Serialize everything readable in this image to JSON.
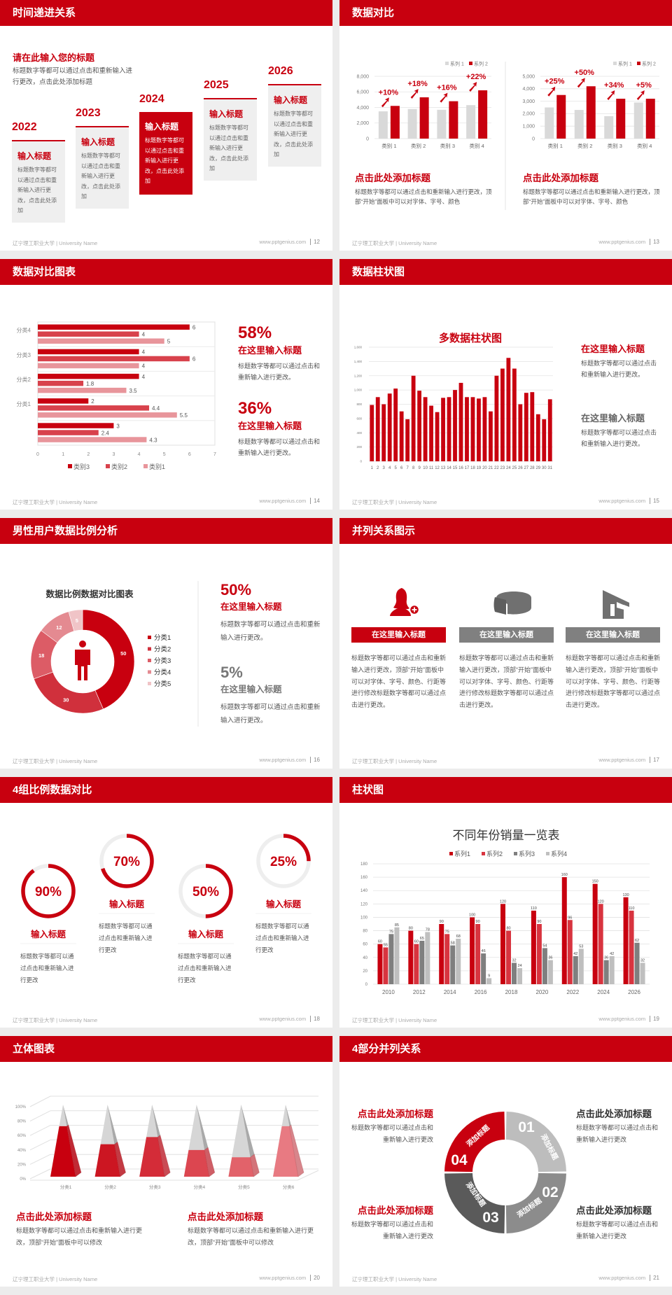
{
  "footer": {
    "school": "辽宁理工职业大学 | University Name",
    "site": "www.pptgenius.com"
  },
  "colors": {
    "primary": "#c8000f",
    "gray": "#808080",
    "light_gray": "#d9d9d9",
    "dark_gray": "#5a5a5a"
  },
  "s12": {
    "page": "12",
    "title": "时间递进关系",
    "heading": "请在此输入您的标题",
    "desc": "标题数字等都可以通过点击和重新输入进行更改，点击此处添加标题",
    "active_index": 2,
    "items": [
      {
        "year": "2022",
        "title": "输入标题",
        "text": "标题数字等都可以通过点击和重新输入进行更改，点击此处添加"
      },
      {
        "year": "2023",
        "title": "输入标题",
        "text": "标题数字等都可以通过点击和重新输入进行更改，点击此处添加"
      },
      {
        "year": "2024",
        "title": "输入标题",
        "text": "标题数字等都可以通过点击和重新输入进行更改，点击此处添加"
      },
      {
        "year": "2025",
        "title": "输入标题",
        "text": "标题数字等都可以通过点击和重新输入进行更改，点击此处添加"
      },
      {
        "year": "2026",
        "title": "输入标题",
        "text": "标题数字等都可以通过点击和重新输入进行更改，点击此处添加"
      }
    ]
  },
  "s13": {
    "page": "13",
    "title": "数据对比",
    "blocks": [
      {
        "title": "点击此处添加标题",
        "text": "标题数字等都可以通过点击和重新输入进行更改，顶部“开始”面板中可以对字体、字号、颜色"
      },
      {
        "title": "点击此处添加标题",
        "text": "标题数字等都可以通过点击和重新输入进行更改，顶部“开始”面板中可以对字体、字号、颜色"
      }
    ]
  },
  "s14": {
    "page": "14",
    "title": "数据对比图表",
    "stats": [
      {
        "value": "58%",
        "heading": "在这里输入标题",
        "text": "标题数字等都可以通过点击和重新输入进行更改。"
      },
      {
        "value": "36%",
        "heading": "在这里输入标题",
        "text": "标题数字等都可以通过点击和重新输入进行更改。"
      }
    ]
  },
  "s15": {
    "page": "15",
    "title": "数据柱状图",
    "blocks": [
      {
        "heading": "在这里输入标题",
        "text": "标题数字等都可以通过点击和重新输入进行更改。"
      },
      {
        "heading": "在这里输入标题",
        "text": "标题数字等都可以通过点击和重新输入进行更改。"
      }
    ]
  },
  "s16": {
    "page": "16",
    "title": "男性用户数据比例分析",
    "stats": [
      {
        "value": "50%",
        "heading": "在这里输入标题",
        "text": "标题数字等都可以通过点击和重新输入进行更改。"
      },
      {
        "value": "5%",
        "heading": "在这里输入标题",
        "text": "标题数字等都可以通过点击和重新输入进行更改。"
      }
    ]
  },
  "s17": {
    "page": "17",
    "title": "并列关系图示",
    "columns": [
      {
        "icon": "female-user-add-icon",
        "header": "在这里输入标题",
        "text": "标题数字等都可以通过点击和重新输入进行更改，顶部“开始”面板中可以对字体、字号、颜色、行距等进行修改标题数字等都可以通过点击进行更改。"
      },
      {
        "icon": "pie-chart-icon",
        "header": "在这里输入标题",
        "text": "标题数字等都可以通过点击和重新输入进行更改，顶部“开始”面板中可以对字体、字号、颜色、行距等进行修改标题数字等都可以通过点击进行更改。"
      },
      {
        "icon": "house-icon",
        "header": "在这里输入标题",
        "text": "标题数字等都可以通过点击和重新输入进行更改，顶部“开始”面板中可以对字体、字号、颜色、行距等进行修改标题数字等都可以通过点击进行更改。"
      }
    ]
  },
  "s18": {
    "page": "18",
    "title": "4组比例数据对比",
    "rings": [
      {
        "label": "90%",
        "percent": 90,
        "title": "输入标题",
        "text": "标题数字等都可以通过点击和重新输入进行更改"
      },
      {
        "label": "70%",
        "percent": 70,
        "title": "输入标题",
        "text": "标题数字等都可以通过点击和重新输入进行更改"
      },
      {
        "label": "50%",
        "percent": 50,
        "title": "输入标题",
        "text": "标题数字等都可以通过点击和重新输入进行更改"
      },
      {
        "label": "25%",
        "percent": 25,
        "title": "输入标题",
        "text": "标题数字等都可以通过点击和重新输入进行更改"
      }
    ]
  },
  "s19": {
    "page": "19",
    "title": "柱状图"
  },
  "s20": {
    "page": "20",
    "title": "立体图表",
    "blocks": [
      {
        "title": "点击此处添加标题",
        "text": "标题数字等都可以通过点击和重新输入进行更改，顶部“开始”面板中可以修改"
      },
      {
        "title": "点击此处添加标题",
        "text": "标题数字等都可以通过点击和重新输入进行更改，顶部“开始”面板中可以修改"
      }
    ]
  },
  "s21": {
    "page": "21",
    "title": "4部分并列关系",
    "segments": [
      {
        "number": "01",
        "label": "添加标题",
        "color": "#bdbdbd"
      },
      {
        "number": "02",
        "label": "添加标题",
        "color": "#8c8c8c"
      },
      {
        "number": "03",
        "label": "添加标题",
        "color": "#5a5a5a"
      },
      {
        "number": "04",
        "label": "添加标题",
        "color": "#c8000f"
      }
    ],
    "blocks": [
      {
        "heading": "点击此处添加标题",
        "text": "标题数字等都可以通过点击和重新输入进行更改"
      },
      {
        "heading": "点击此处添加标题",
        "text": "标题数字等都可以通过点击和重新输入进行更改"
      },
      {
        "heading": "点击此处添加标题",
        "text": "标题数字等都可以通过点击和重新输入进行更改"
      },
      {
        "heading": "点击此处添加标题",
        "text": "标题数字等都可以通过点击和重新输入进行更改"
      }
    ]
  },
  "chart_data": [
    {
      "type": "bar",
      "categories": [
        "类别 1",
        "类别 2",
        "类别 3",
        "类别 4"
      ],
      "series": [
        {
          "name": "系列 1",
          "values": [
            3500,
            3800,
            3700,
            4300
          ]
        },
        {
          "name": "系列 2",
          "values": [
            4200,
            5300,
            4800,
            6200
          ]
        }
      ],
      "annotations": [
        "+10%",
        "+18%",
        "+16%",
        "+22%"
      ],
      "ylim": [
        0,
        8000
      ],
      "yticks": [
        "0",
        "2,000",
        "4,000",
        "6,000",
        "8,000"
      ],
      "grid": true,
      "legend": "top-right"
    },
    {
      "type": "bar",
      "categories": [
        "类别 1",
        "类别 2",
        "类别 3",
        "类别 4"
      ],
      "series": [
        {
          "name": "系列 1",
          "values": [
            2500,
            2300,
            1800,
            2900
          ]
        },
        {
          "name": "系列 2",
          "values": [
            3500,
            4200,
            3200,
            3200
          ]
        }
      ],
      "annotations": [
        "+25%",
        "+50%",
        "+34%",
        "+5%"
      ],
      "ylim": [
        0,
        5000
      ],
      "yticks": [
        "0",
        "1,000",
        "2,000",
        "3,000",
        "4,000",
        "5,000"
      ],
      "grid": true,
      "legend": "top-right"
    },
    {
      "type": "bar",
      "orientation": "horizontal",
      "categories": [
        "分类4",
        "分类3",
        "分类2",
        "分类1",
        ""
      ],
      "series": [
        {
          "name": "类别3",
          "values": [
            6,
            4,
            4,
            2,
            3
          ]
        },
        {
          "name": "类别2",
          "values": [
            4,
            6,
            1.8,
            4.4,
            2.4
          ]
        },
        {
          "name": "类别1",
          "values": [
            5,
            4,
            3.5,
            5.5,
            4.3
          ]
        }
      ],
      "xlim": [
        0,
        7
      ],
      "xticks": [
        "0",
        "1",
        "2",
        "3",
        "4",
        "5",
        "6",
        "7"
      ],
      "legend": "bottom"
    },
    {
      "type": "bar",
      "title": "多数据柱状图",
      "categories": [
        "1",
        "2",
        "3",
        "4",
        "5",
        "6",
        "7",
        "8",
        "9",
        "10",
        "11",
        "12",
        "13",
        "14",
        "15",
        "16",
        "17",
        "18",
        "19",
        "20",
        "21",
        "22",
        "23",
        "24",
        "25",
        "26",
        "27",
        "28",
        "29",
        "30",
        "31"
      ],
      "series": [
        {
          "values": [
            790,
            900,
            800,
            950,
            1020,
            700,
            590,
            1200,
            990,
            900,
            780,
            690,
            890,
            900,
            1000,
            1100,
            900,
            900,
            880,
            900,
            700,
            1200,
            1300,
            1450,
            1300,
            800,
            960,
            970,
            660,
            590,
            870
          ]
        }
      ],
      "ylim": [
        0,
        1600
      ],
      "yticks": [
        "0",
        "200",
        "400",
        "600",
        "800",
        "1,000",
        "1,200",
        "1,400",
        "1,600"
      ],
      "grid": true
    },
    {
      "type": "pie",
      "variant": "donut",
      "title": "数据比例数据对比图表",
      "categories": [
        "分类1",
        "分类2",
        "分类3",
        "分类4",
        "分类5"
      ],
      "values": [
        50,
        30,
        18,
        12,
        5
      ],
      "colors": [
        "#c8000f",
        "#d0303c",
        "#dc5c66",
        "#e48a91",
        "#f0c4c7"
      ],
      "legend": "right"
    },
    {
      "type": "bar",
      "title": "不同年份销量一览表",
      "categories": [
        "2010",
        "2012",
        "2014",
        "2016",
        "2018",
        "2020",
        "2022",
        "2024",
        "2026"
      ],
      "series": [
        {
          "name": "系列1",
          "values": [
            60,
            80,
            90,
            100,
            120,
            110,
            160,
            150,
            130
          ]
        },
        {
          "name": "系列2",
          "values": [
            55,
            60,
            75,
            90,
            80,
            90,
            96,
            120,
            110
          ]
        },
        {
          "name": "系列3",
          "values": [
            75,
            65,
            58,
            46,
            32,
            54,
            42,
            36,
            62
          ]
        },
        {
          "name": "系列4",
          "values": [
            85,
            78,
            68,
            9,
            24,
            36,
            53,
            42,
            32
          ]
        }
      ],
      "colors": [
        "#c8000f",
        "#d8343f",
        "#7f7f7f",
        "#bfbfbf"
      ],
      "ylim": [
        0,
        180
      ],
      "yticks": [
        "0",
        "20",
        "40",
        "60",
        "80",
        "100",
        "120",
        "140",
        "160",
        "180"
      ],
      "grid": true,
      "legend": "top"
    },
    {
      "type": "bar",
      "variant": "3d-pyramid-stacked-percent",
      "categories": [
        "分类1",
        "分类2",
        "分类3",
        "分类4",
        "分类5",
        "分类6"
      ],
      "values": [
        70,
        45,
        55,
        37,
        27,
        70
      ],
      "ylim": [
        0,
        100
      ],
      "yticks": [
        "0%",
        "20%",
        "40%",
        "60%",
        "80%",
        "100%"
      ],
      "grid": true
    }
  ]
}
